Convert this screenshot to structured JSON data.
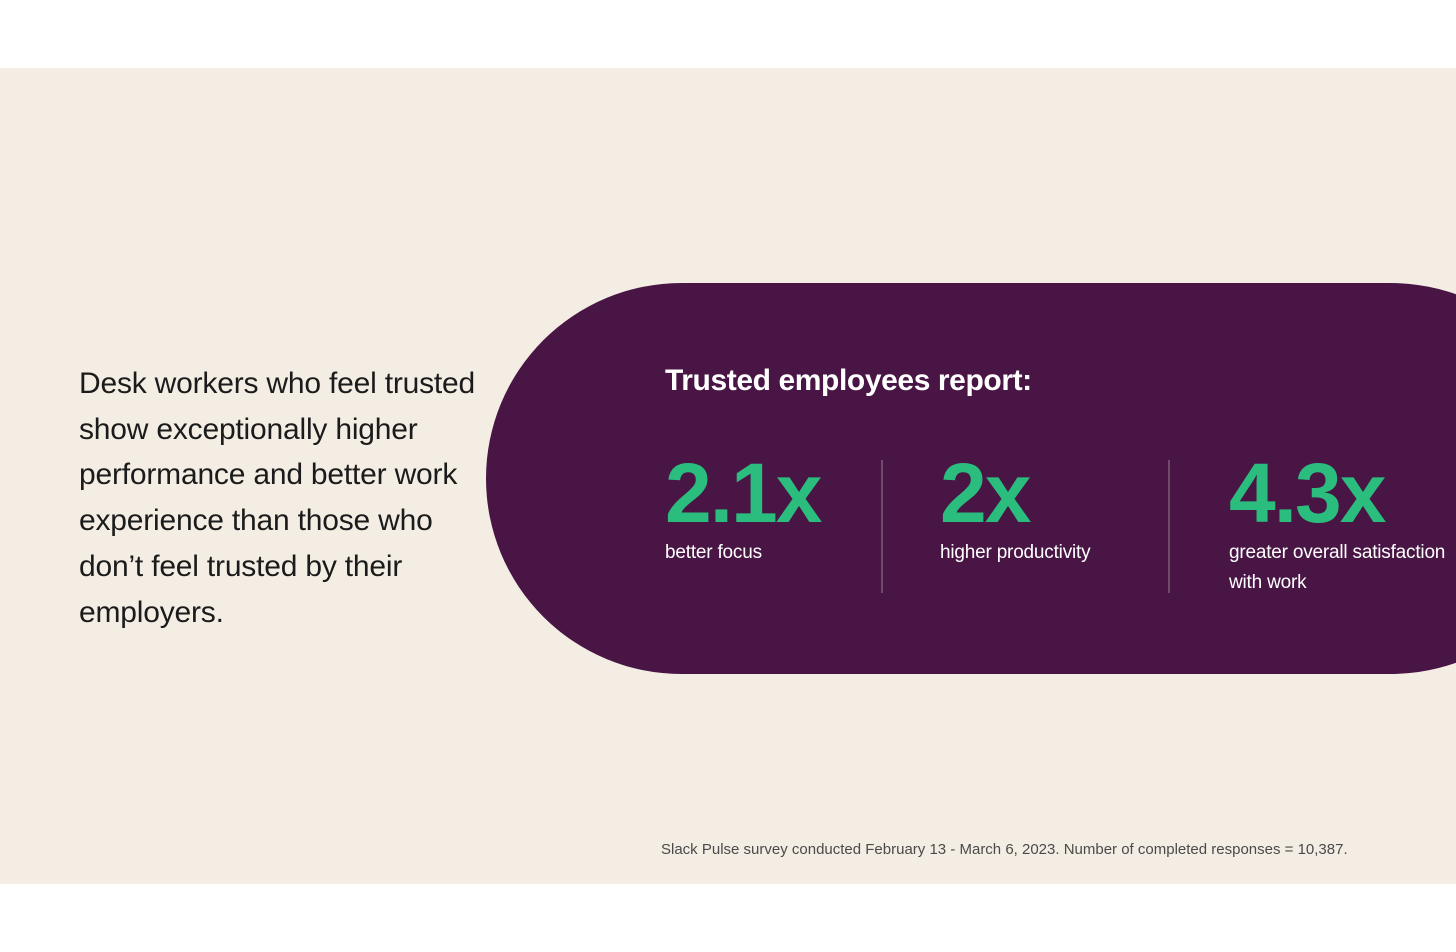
{
  "intro": {
    "text": "Desk workers who feel trusted show exceptionally higher performance and better work experience than those who don’t feel trusted by their employers."
  },
  "callout": {
    "title": "Trusted employees report:",
    "stats": [
      {
        "value": "2.1x",
        "label": "better focus"
      },
      {
        "value": "2x",
        "label": "higher productivity"
      },
      {
        "value": "4.3x",
        "label": "greater overall satisfaction with work"
      }
    ]
  },
  "footnote": "Slack Pulse survey conducted February 13 - March 6, 2023. Number of completed responses = 10,387.",
  "colors": {
    "panel_background": "#f4ede4",
    "callout_background": "#481545",
    "stat_accent": "#2bbd7e"
  }
}
